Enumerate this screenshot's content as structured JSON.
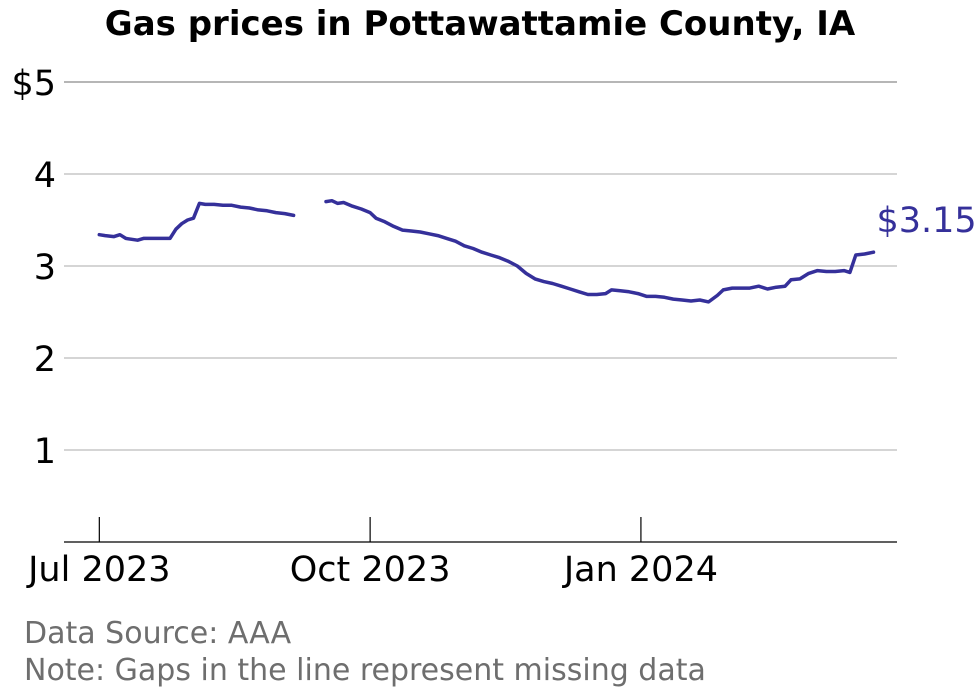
{
  "chart_data": {
    "type": "line",
    "title": "Gas prices in Pottawattamie County, IA",
    "xlabel": "",
    "ylabel": "",
    "x_ticks": [
      "Jul 2023",
      "Oct 2023",
      "Jan 2024"
    ],
    "x_tick_dates": [
      "2023-07-01",
      "2023-10-01",
      "2024-01-01"
    ],
    "xlim": [
      "2023-06-19",
      "2024-03-28"
    ],
    "y_ticks": [
      "1",
      "2",
      "3",
      "4",
      "$5"
    ],
    "y_tick_values": [
      1,
      2,
      3,
      4,
      5
    ],
    "ylim": [
      0,
      5
    ],
    "grid": "horizontal",
    "line_color": "#35309a",
    "last_value_label": "$3.15",
    "series": [
      {
        "segments": [
          [
            [
              "2023-07-01",
              3.34
            ],
            [
              "2023-07-03",
              3.33
            ],
            [
              "2023-07-06",
              3.32
            ],
            [
              "2023-07-08",
              3.34
            ],
            [
              "2023-07-10",
              3.3
            ],
            [
              "2023-07-12",
              3.29
            ],
            [
              "2023-07-14",
              3.28
            ],
            [
              "2023-07-16",
              3.3
            ],
            [
              "2023-07-19",
              3.3
            ],
            [
              "2023-07-22",
              3.3
            ],
            [
              "2023-07-25",
              3.3
            ],
            [
              "2023-07-27",
              3.4
            ],
            [
              "2023-07-29",
              3.46
            ],
            [
              "2023-07-31",
              3.5
            ],
            [
              "2023-08-02",
              3.52
            ],
            [
              "2023-08-04",
              3.68
            ],
            [
              "2023-08-06",
              3.67
            ],
            [
              "2023-08-09",
              3.67
            ],
            [
              "2023-08-12",
              3.66
            ],
            [
              "2023-08-15",
              3.66
            ],
            [
              "2023-08-18",
              3.64
            ],
            [
              "2023-08-21",
              3.63
            ],
            [
              "2023-08-24",
              3.61
            ],
            [
              "2023-08-27",
              3.6
            ],
            [
              "2023-08-30",
              3.58
            ],
            [
              "2023-09-02",
              3.57
            ],
            [
              "2023-09-05",
              3.55
            ]
          ],
          [
            [
              "2023-09-16",
              3.7
            ],
            [
              "2023-09-18",
              3.71
            ],
            [
              "2023-09-20",
              3.68
            ],
            [
              "2023-09-22",
              3.69
            ],
            [
              "2023-09-25",
              3.65
            ],
            [
              "2023-09-28",
              3.62
            ],
            [
              "2023-10-01",
              3.58
            ],
            [
              "2023-10-03",
              3.52
            ],
            [
              "2023-10-06",
              3.48
            ],
            [
              "2023-10-09",
              3.43
            ],
            [
              "2023-10-12",
              3.39
            ],
            [
              "2023-10-15",
              3.38
            ],
            [
              "2023-10-18",
              3.37
            ],
            [
              "2023-10-21",
              3.35
            ],
            [
              "2023-10-24",
              3.33
            ],
            [
              "2023-10-27",
              3.3
            ],
            [
              "2023-10-30",
              3.27
            ],
            [
              "2023-11-02",
              3.22
            ],
            [
              "2023-11-05",
              3.19
            ],
            [
              "2023-11-08",
              3.15
            ],
            [
              "2023-11-11",
              3.12
            ],
            [
              "2023-11-14",
              3.09
            ],
            [
              "2023-11-17",
              3.05
            ],
            [
              "2023-11-20",
              3.0
            ],
            [
              "2023-11-23",
              2.92
            ],
            [
              "2023-11-26",
              2.86
            ],
            [
              "2023-11-29",
              2.83
            ],
            [
              "2023-12-02",
              2.81
            ],
            [
              "2023-12-05",
              2.78
            ],
            [
              "2023-12-08",
              2.75
            ],
            [
              "2023-12-11",
              2.72
            ],
            [
              "2023-12-14",
              2.69
            ],
            [
              "2023-12-17",
              2.69
            ],
            [
              "2023-12-20",
              2.7
            ],
            [
              "2023-12-22",
              2.74
            ],
            [
              "2023-12-25",
              2.73
            ],
            [
              "2023-12-28",
              2.72
            ],
            [
              "2023-12-31",
              2.7
            ],
            [
              "2024-01-03",
              2.67
            ],
            [
              "2024-01-06",
              2.67
            ],
            [
              "2024-01-09",
              2.66
            ],
            [
              "2024-01-12",
              2.64
            ],
            [
              "2024-01-15",
              2.63
            ],
            [
              "2024-01-18",
              2.62
            ],
            [
              "2024-01-21",
              2.63
            ],
            [
              "2024-01-24",
              2.61
            ],
            [
              "2024-01-27",
              2.68
            ],
            [
              "2024-01-29",
              2.74
            ],
            [
              "2024-02-01",
              2.76
            ],
            [
              "2024-02-04",
              2.76
            ],
            [
              "2024-02-07",
              2.76
            ],
            [
              "2024-02-10",
              2.78
            ],
            [
              "2024-02-13",
              2.75
            ],
            [
              "2024-02-16",
              2.77
            ],
            [
              "2024-02-19",
              2.78
            ],
            [
              "2024-02-21",
              2.85
            ],
            [
              "2024-02-24",
              2.86
            ],
            [
              "2024-02-27",
              2.92
            ],
            [
              "2024-03-01",
              2.95
            ],
            [
              "2024-03-04",
              2.94
            ],
            [
              "2024-03-07",
              2.94
            ],
            [
              "2024-03-10",
              2.95
            ],
            [
              "2024-03-12",
              2.93
            ],
            [
              "2024-03-14",
              3.12
            ],
            [
              "2024-03-17",
              3.13
            ],
            [
              "2024-03-20",
              3.15
            ]
          ]
        ]
      }
    ]
  },
  "footer": {
    "source": "Data Source: AAA",
    "note": "Note: Gaps in the line represent missing data"
  }
}
